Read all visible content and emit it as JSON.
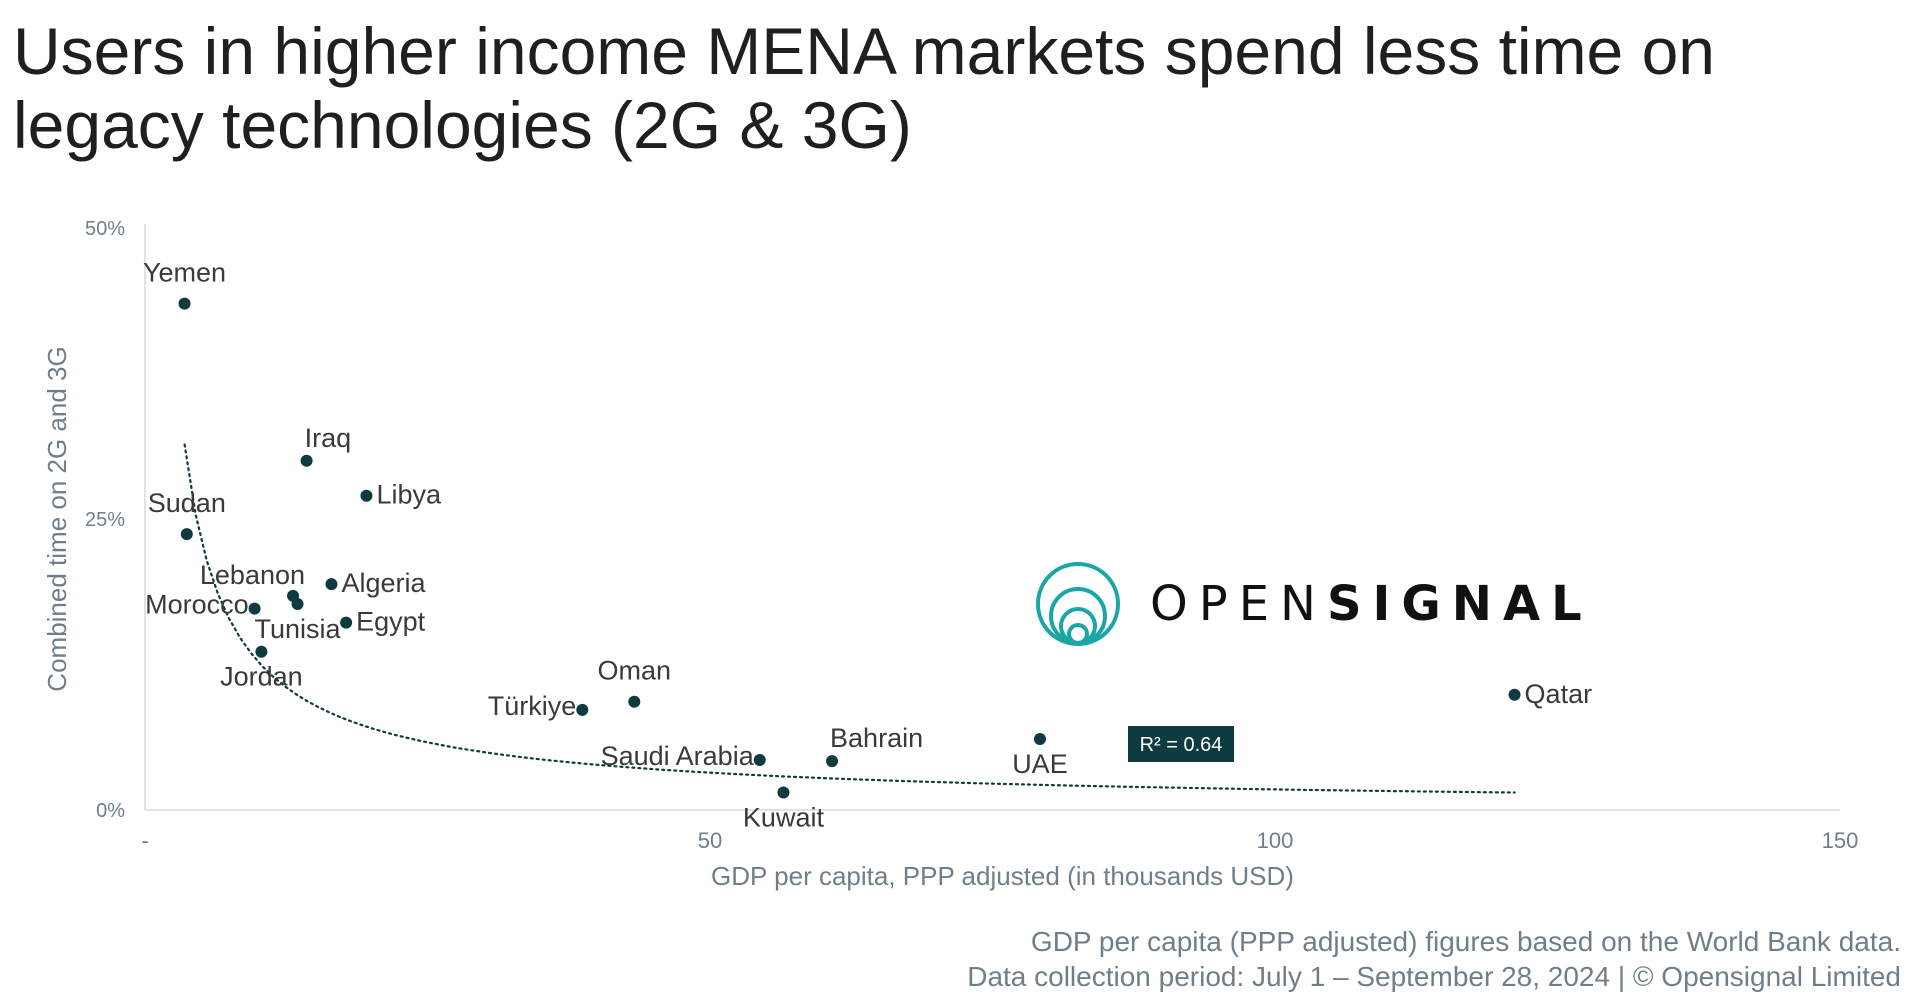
{
  "title": {
    "line1": "Users in higher income MENA markets spend less time on",
    "line2": "legacy technologies (2G & 3G)"
  },
  "logo": {
    "text_light": "OPEN",
    "text_bold": "SIGNAL",
    "icon": "opensignal-rings-icon"
  },
  "footnote": {
    "line1": "GDP per capita (PPP adjusted) figures based on the World Bank data.",
    "line2": "Data collection period: July 1 – September 28, 2024 | © Opensignal Limited"
  },
  "colors": {
    "point": "#0d3b3f",
    "trend": "#0d3b3f",
    "axis_text": "#6f7f89",
    "label_text": "#3a3a3a",
    "r2_bg": "#0d3b3f",
    "logo_teal": "#1aa6a6"
  },
  "chart_data": {
    "type": "scatter",
    "title": "",
    "xlabel": "GDP per capita, PPP adjusted (in thousands USD)",
    "ylabel": "Combined time on 2G and 3G",
    "xlim": [
      0,
      150
    ],
    "ylim": [
      0,
      50
    ],
    "x_ticks": [
      {
        "value": 0,
        "label": "-"
      },
      {
        "value": 50,
        "label": "50"
      },
      {
        "value": 100,
        "label": "100"
      },
      {
        "value": 150,
        "label": "150"
      }
    ],
    "y_ticks": [
      {
        "value": 0,
        "label": "0%"
      },
      {
        "value": 25,
        "label": "25%"
      },
      {
        "value": 50,
        "label": "50%"
      }
    ],
    "grid": false,
    "points": [
      {
        "label": "Yemen",
        "x": 3.5,
        "y": 43.5,
        "anchor": "above"
      },
      {
        "label": "Iraq",
        "x": 14.3,
        "y": 30.0,
        "anchor": "above-right"
      },
      {
        "label": "Libya",
        "x": 19.6,
        "y": 27.0,
        "anchor": "right"
      },
      {
        "label": "Sudan",
        "x": 3.7,
        "y": 23.7,
        "anchor": "above"
      },
      {
        "label": "Algeria",
        "x": 16.5,
        "y": 19.4,
        "anchor": "right"
      },
      {
        "label": "Lebanon",
        "x": 13.1,
        "y": 18.4,
        "anchor": "left-above"
      },
      {
        "label": "Morocco",
        "x": 9.7,
        "y": 17.3,
        "anchor": "left"
      },
      {
        "label": "Tunisia",
        "x": 13.5,
        "y": 17.7,
        "anchor": "below"
      },
      {
        "label": "Egypt",
        "x": 17.8,
        "y": 16.1,
        "anchor": "right"
      },
      {
        "label": "Jordan",
        "x": 10.3,
        "y": 13.6,
        "anchor": "below"
      },
      {
        "label": "Oman",
        "x": 43.3,
        "y": 9.3,
        "anchor": "above"
      },
      {
        "label": "Türkiye",
        "x": 38.7,
        "y": 8.6,
        "anchor": "left"
      },
      {
        "label": "Saudi Arabia",
        "x": 54.4,
        "y": 4.3,
        "anchor": "left"
      },
      {
        "label": "Bahrain",
        "x": 60.8,
        "y": 4.2,
        "anchor": "above-right"
      },
      {
        "label": "Kuwait",
        "x": 56.5,
        "y": 1.5,
        "anchor": "below"
      },
      {
        "label": "UAE",
        "x": 79.2,
        "y": 6.1,
        "anchor": "below"
      },
      {
        "label": "Qatar",
        "x": 121.2,
        "y": 9.9,
        "anchor": "right"
      }
    ],
    "trendline": {
      "type": "power",
      "x_start": 3.5,
      "x_end": 121.2,
      "y_start": 31.4,
      "y_end": 1.5,
      "r2_label": "R² = 0.64"
    }
  }
}
